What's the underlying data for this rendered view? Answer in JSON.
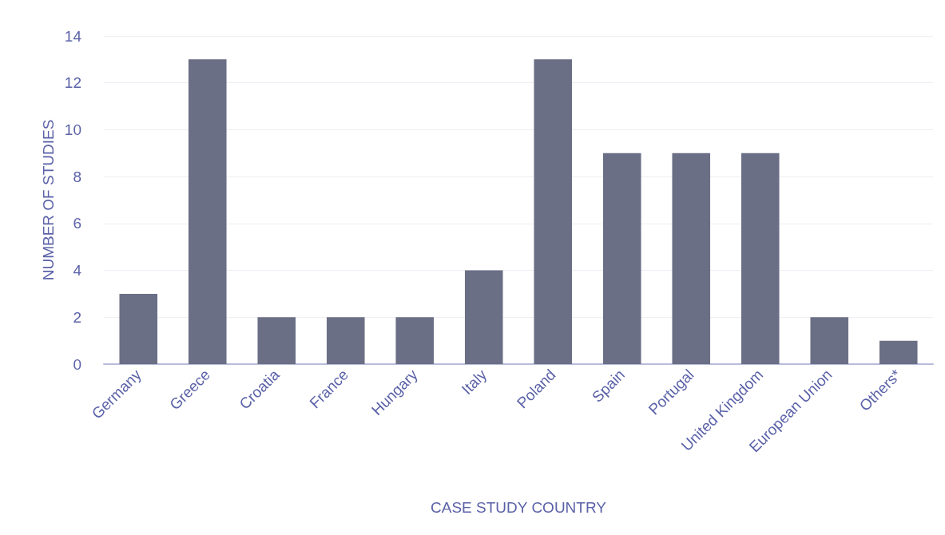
{
  "chart_data": {
    "type": "bar",
    "xlabel": "CASE STUDY COUNTRY",
    "ylabel": "NUMBER OF STUDIES",
    "categories": [
      "Germany",
      "Greece",
      "Croatia",
      "France",
      "Hungary",
      "Italy",
      "Poland",
      "Spain",
      "Portugal",
      "United Kingdom",
      "European Union",
      "Others*"
    ],
    "values": [
      3,
      13,
      2,
      2,
      2,
      4,
      13,
      9,
      9,
      9,
      2,
      1
    ],
    "color": "#6b6f85",
    "ylim": [
      0,
      14
    ],
    "yticks": [
      0,
      2,
      4,
      6,
      8,
      10,
      12,
      14
    ],
    "grid": "y"
  }
}
